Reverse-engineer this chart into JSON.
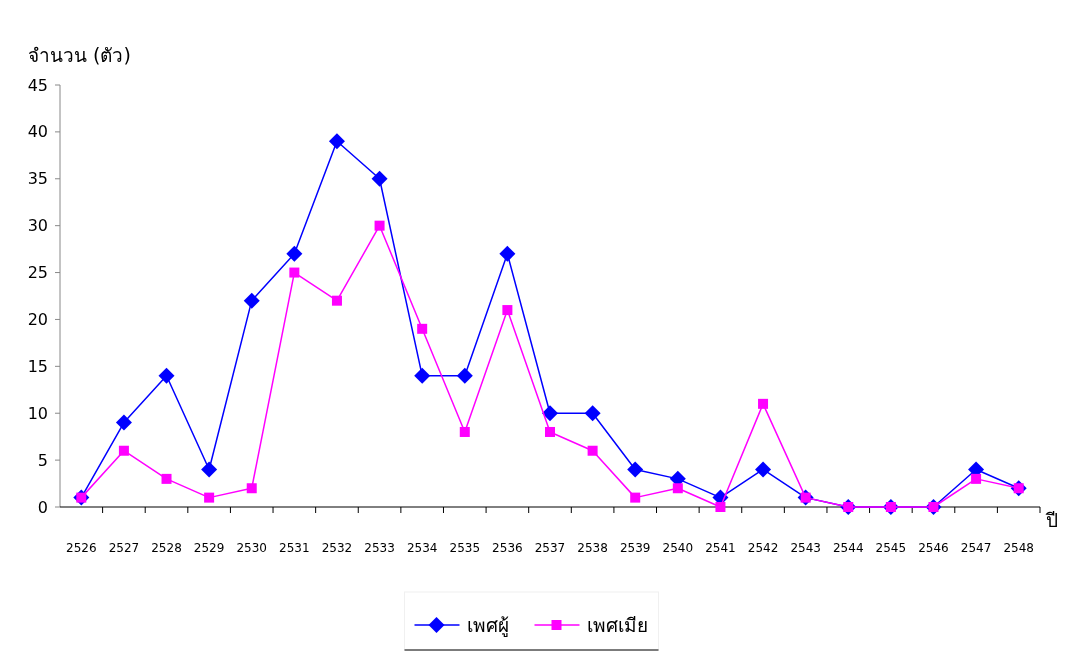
{
  "chart_data": {
    "type": "line",
    "xlabel": "ปี",
    "ylabel": "จำนวน (ตัว)",
    "categories": [
      "2526",
      "2527",
      "2528",
      "2529",
      "2530",
      "2531",
      "2532",
      "2533",
      "2534",
      "2535",
      "2536",
      "2537",
      "2538",
      "2539",
      "2540",
      "2541",
      "2542",
      "2543",
      "2544",
      "2545",
      "2546",
      "2547",
      "2548"
    ],
    "series": [
      {
        "name": "เพศผู้",
        "color": "#0000ff",
        "marker": "diamond",
        "values": [
          1,
          9,
          14,
          4,
          22,
          27,
          39,
          35,
          14,
          14,
          27,
          10,
          10,
          4,
          3,
          1,
          4,
          1,
          0,
          0,
          0,
          4,
          2
        ]
      },
      {
        "name": "เพศเมีย",
        "color": "#ff00ff",
        "marker": "square",
        "values": [
          1,
          6,
          3,
          1,
          2,
          25,
          22,
          30,
          19,
          8,
          21,
          8,
          6,
          1,
          2,
          0,
          11,
          1,
          0,
          0,
          0,
          3,
          2
        ]
      }
    ],
    "ylim": [
      0,
      45
    ],
    "yticks": [
      0,
      5,
      10,
      15,
      20,
      25,
      30,
      35,
      40,
      45
    ],
    "grid": false,
    "legend": "bottom",
    "line_style": "solid"
  }
}
